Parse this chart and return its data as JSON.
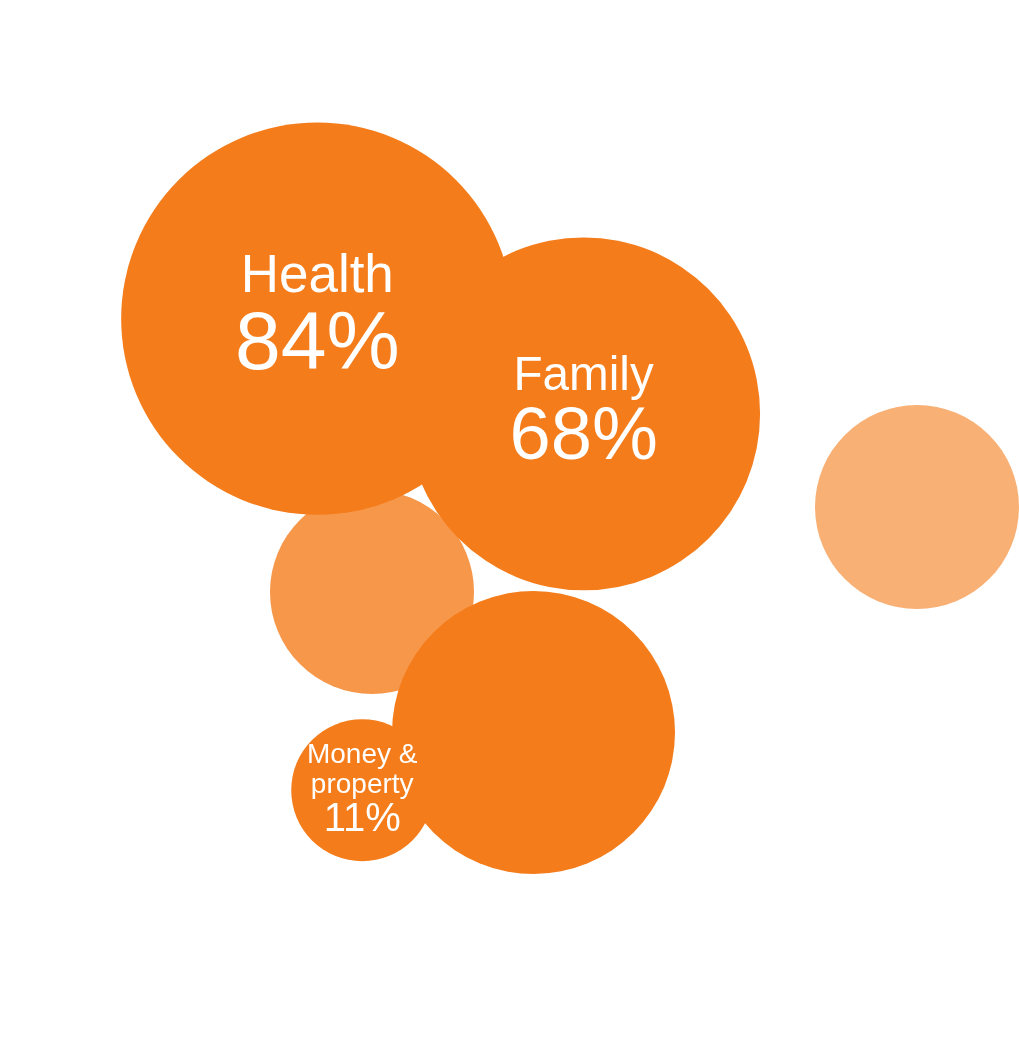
{
  "chart_data": {
    "type": "other",
    "categories": [
      "Health",
      "Family",
      "Money & property"
    ],
    "values": [
      84,
      68,
      11
    ],
    "value_labels": [
      "84%",
      "68%",
      "11%"
    ],
    "color": "#f47c1a"
  }
}
